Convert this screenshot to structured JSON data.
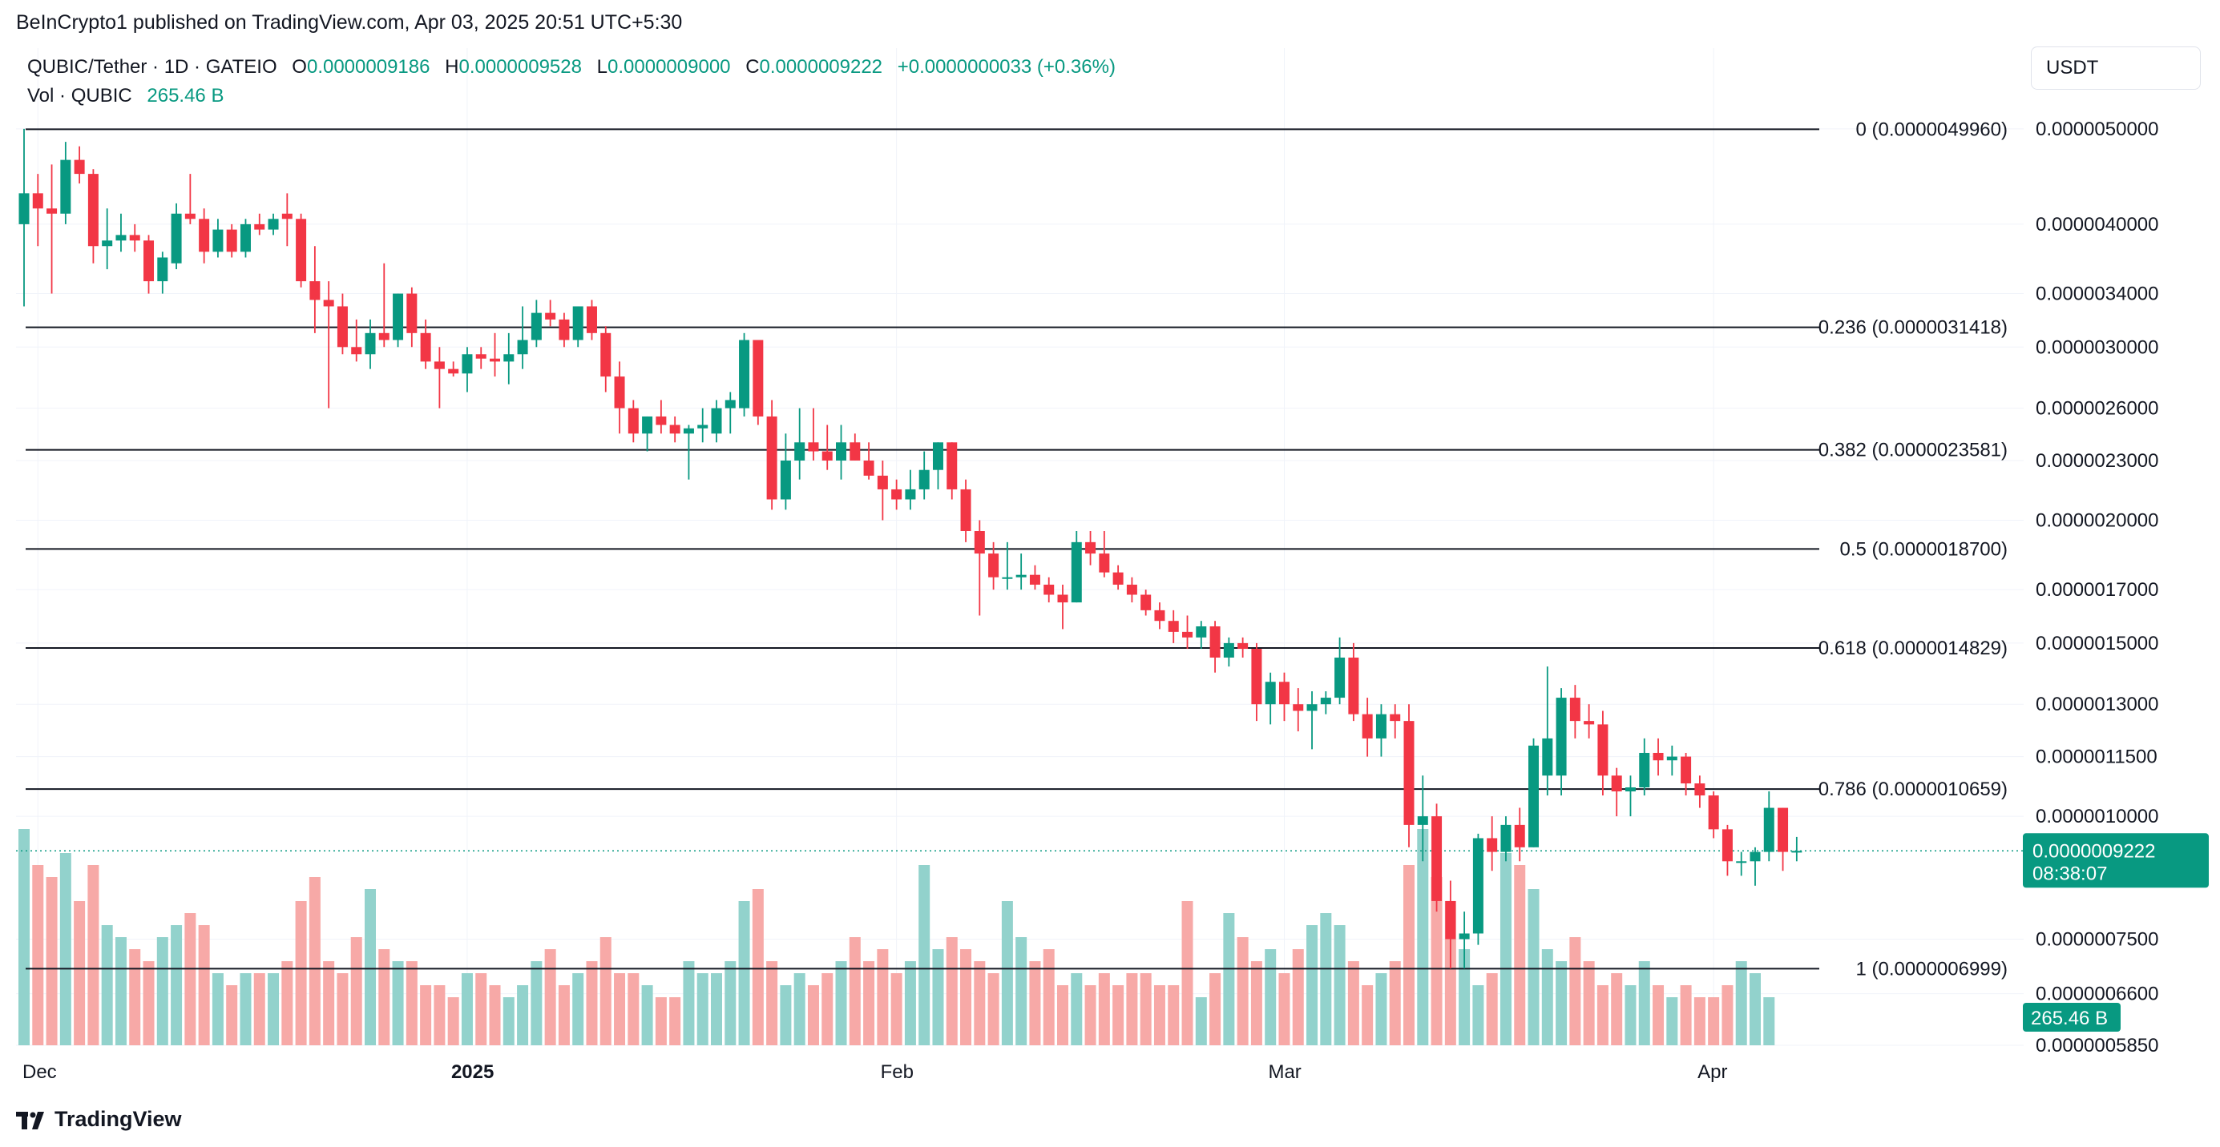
{
  "publisher": "BeInCrypto1 published on TradingView.com, Apr 03, 2025 20:51 UTC+5:30",
  "legend": {
    "symbol": "QUBIC/Tether · 1D · GATEIO",
    "o_label": "O",
    "o_value": "0.0000009186",
    "h_label": "H",
    "h_value": "0.0000009528",
    "l_label": "L",
    "l_value": "0.0000009000",
    "c_label": "C",
    "c_value": "0.0000009222",
    "change": "+0.0000000033 (+0.36%)",
    "vol_label": "Vol · QUBIC",
    "vol_value": "265.46 B"
  },
  "currency": "USDT",
  "brand": "TradingView",
  "colors": {
    "up": "#089981",
    "down": "#f23645",
    "up_vol": "#92d2cc",
    "down_vol": "#f7a9a7"
  },
  "price_badge": {
    "price": "0.0000009222",
    "countdown": "08:38:07"
  },
  "volume_badge": "265.46 B",
  "chart_data": {
    "type": "candlestick",
    "scale": "log",
    "ylim": [
      5.85e-07,
      5.2e-06
    ],
    "y_ticks": [
      {
        "v": 5e-06,
        "label": "0.0000050000"
      },
      {
        "v": 4e-06,
        "label": "0.0000040000"
      },
      {
        "v": 3.4e-06,
        "label": "0.0000034000"
      },
      {
        "v": 3e-06,
        "label": "0.0000030000"
      },
      {
        "v": 2.6e-06,
        "label": "0.0000026000"
      },
      {
        "v": 2.3e-06,
        "label": "0.0000023000"
      },
      {
        "v": 2e-06,
        "label": "0.0000020000"
      },
      {
        "v": 1.7e-06,
        "label": "0.0000017000"
      },
      {
        "v": 1.5e-06,
        "label": "0.0000015000"
      },
      {
        "v": 1.3e-06,
        "label": "0.0000013000"
      },
      {
        "v": 1.15e-06,
        "label": "0.0000011500"
      },
      {
        "v": 1e-06,
        "label": "0.0000010000"
      },
      {
        "v": 7.5e-07,
        "label": "0.0000007500"
      },
      {
        "v": 6.6e-07,
        "label": "0.0000006600"
      },
      {
        "v": 5.85e-07,
        "label": "0.0000005850"
      }
    ],
    "x_ticks": [
      {
        "i": 1,
        "label": "Dec",
        "bold": false
      },
      {
        "i": 32,
        "label": "2025",
        "bold": true
      },
      {
        "i": 63,
        "label": "Feb",
        "bold": false
      },
      {
        "i": 91,
        "label": "Mar",
        "bold": false
      },
      {
        "i": 122,
        "label": "Apr",
        "bold": false
      }
    ],
    "fib_levels": [
      {
        "v": 4.996e-06,
        "label": "0 (0.0000049960)"
      },
      {
        "v": 3.1418e-06,
        "label": "0.236 (0.0000031418)"
      },
      {
        "v": 2.3581e-06,
        "label": "0.382 (0.0000023581)"
      },
      {
        "v": 1.87e-06,
        "label": "0.5 (0.0000018700)"
      },
      {
        "v": 1.4829e-06,
        "label": "0.618 (0.0000014829)"
      },
      {
        "v": 1.0659e-06,
        "label": "0.786 (0.0000010659)"
      },
      {
        "v": 6.999e-07,
        "label": "1 (0.0000006999)"
      }
    ],
    "current_price": 9.222e-07,
    "ohlc": [
      [
        4e-06,
        5e-06,
        3.3e-06,
        4.3e-06
      ],
      [
        4.3e-06,
        4.5e-06,
        3.8e-06,
        4.15e-06
      ],
      [
        4.15e-06,
        4.6e-06,
        3.4e-06,
        4.1e-06
      ],
      [
        4.1e-06,
        4.85e-06,
        4e-06,
        4.65e-06
      ],
      [
        4.65e-06,
        4.8e-06,
        4.4e-06,
        4.5e-06
      ],
      [
        4.5e-06,
        4.55e-06,
        3.65e-06,
        3.8e-06
      ],
      [
        3.8e-06,
        4.15e-06,
        3.6e-06,
        3.85e-06
      ],
      [
        3.85e-06,
        4.1e-06,
        3.75e-06,
        3.9e-06
      ],
      [
        3.9e-06,
        4e-06,
        3.75e-06,
        3.85e-06
      ],
      [
        3.85e-06,
        3.9e-06,
        3.4e-06,
        3.5e-06
      ],
      [
        3.5e-06,
        3.75e-06,
        3.4e-06,
        3.7e-06
      ],
      [
        3.65e-06,
        4.2e-06,
        3.6e-06,
        4.1e-06
      ],
      [
        4.1e-06,
        4.5e-06,
        4e-06,
        4.05e-06
      ],
      [
        4.05e-06,
        4.15e-06,
        3.65e-06,
        3.75e-06
      ],
      [
        3.75e-06,
        4.05e-06,
        3.7e-06,
        3.95e-06
      ],
      [
        3.95e-06,
        4e-06,
        3.7e-06,
        3.75e-06
      ],
      [
        3.75e-06,
        4.05e-06,
        3.7e-06,
        4e-06
      ],
      [
        4e-06,
        4.1e-06,
        3.9e-06,
        3.95e-06
      ],
      [
        3.95e-06,
        4.1e-06,
        3.9e-06,
        4.05e-06
      ],
      [
        4.1e-06,
        4.3e-06,
        3.8e-06,
        4.05e-06
      ],
      [
        4.05e-06,
        4.1e-06,
        3.45e-06,
        3.5e-06
      ],
      [
        3.5e-06,
        3.8e-06,
        3.1e-06,
        3.35e-06
      ],
      [
        3.35e-06,
        3.5e-06,
        2.6e-06,
        3.3e-06
      ],
      [
        3.3e-06,
        3.4e-06,
        2.95e-06,
        3e-06
      ],
      [
        3e-06,
        3.2e-06,
        2.9e-06,
        2.95e-06
      ],
      [
        2.95e-06,
        3.2e-06,
        2.85e-06,
        3.1e-06
      ],
      [
        3.1e-06,
        3.65e-06,
        3e-06,
        3.05e-06
      ],
      [
        3.05e-06,
        3.4e-06,
        3e-06,
        3.4e-06
      ],
      [
        3.4e-06,
        3.45e-06,
        3e-06,
        3.1e-06
      ],
      [
        3.1e-06,
        3.2e-06,
        2.85e-06,
        2.9e-06
      ],
      [
        2.9e-06,
        3e-06,
        2.6e-06,
        2.85e-06
      ],
      [
        2.85e-06,
        2.9e-06,
        2.8e-06,
        2.82e-06
      ],
      [
        2.82e-06,
        3e-06,
        2.7e-06,
        2.95e-06
      ],
      [
        2.95e-06,
        3e-06,
        2.85e-06,
        2.92e-06
      ],
      [
        2.92e-06,
        3.1e-06,
        2.8e-06,
        2.9e-06
      ],
      [
        2.9e-06,
        3.1e-06,
        2.75e-06,
        2.95e-06
      ],
      [
        2.95e-06,
        3.3e-06,
        2.85e-06,
        3.05e-06
      ],
      [
        3.05e-06,
        3.35e-06,
        3e-06,
        3.25e-06
      ],
      [
        3.25e-06,
        3.35e-06,
        3.15e-06,
        3.2e-06
      ],
      [
        3.2e-06,
        3.25e-06,
        3e-06,
        3.05e-06
      ],
      [
        3.05e-06,
        3.3e-06,
        3e-06,
        3.3e-06
      ],
      [
        3.3e-06,
        3.35e-06,
        3.05e-06,
        3.1e-06
      ],
      [
        3.1e-06,
        3.15e-06,
        2.7e-06,
        2.8e-06
      ],
      [
        2.8e-06,
        2.9e-06,
        2.45e-06,
        2.6e-06
      ],
      [
        2.6e-06,
        2.65e-06,
        2.4e-06,
        2.45e-06
      ],
      [
        2.45e-06,
        2.55e-06,
        2.35e-06,
        2.55e-06
      ],
      [
        2.55e-06,
        2.65e-06,
        2.45e-06,
        2.5e-06
      ],
      [
        2.5e-06,
        2.55e-06,
        2.4e-06,
        2.45e-06
      ],
      [
        2.45e-06,
        2.5e-06,
        2.2e-06,
        2.48e-06
      ],
      [
        2.48e-06,
        2.6e-06,
        2.4e-06,
        2.5e-06
      ],
      [
        2.45e-06,
        2.65e-06,
        2.4e-06,
        2.6e-06
      ],
      [
        2.6e-06,
        2.7e-06,
        2.45e-06,
        2.65e-06
      ],
      [
        2.6e-06,
        3.1e-06,
        2.55e-06,
        3.05e-06
      ],
      [
        3.05e-06,
        3.05e-06,
        2.5e-06,
        2.55e-06
      ],
      [
        2.55e-06,
        2.65e-06,
        2.05e-06,
        2.1e-06
      ],
      [
        2.1e-06,
        2.45e-06,
        2.05e-06,
        2.3e-06
      ],
      [
        2.3e-06,
        2.6e-06,
        2.2e-06,
        2.4e-06
      ],
      [
        2.4e-06,
        2.6e-06,
        2.3e-06,
        2.35e-06
      ],
      [
        2.35e-06,
        2.5e-06,
        2.25e-06,
        2.3e-06
      ],
      [
        2.3e-06,
        2.5e-06,
        2.2e-06,
        2.4e-06
      ],
      [
        2.4e-06,
        2.45e-06,
        2.3e-06,
        2.3e-06
      ],
      [
        2.3e-06,
        2.4e-06,
        2.2e-06,
        2.22e-06
      ],
      [
        2.22e-06,
        2.3e-06,
        2e-06,
        2.15e-06
      ],
      [
        2.15e-06,
        2.2e-06,
        2.05e-06,
        2.1e-06
      ],
      [
        2.1e-06,
        2.25e-06,
        2.05e-06,
        2.15e-06
      ],
      [
        2.15e-06,
        2.35e-06,
        2.1e-06,
        2.25e-06
      ],
      [
        2.25e-06,
        2.4e-06,
        2.15e-06,
        2.4e-06
      ],
      [
        2.4e-06,
        2.4e-06,
        2.1e-06,
        2.15e-06
      ],
      [
        2.15e-06,
        2.2e-06,
        1.9e-06,
        1.95e-06
      ],
      [
        1.95e-06,
        2e-06,
        1.6e-06,
        1.85e-06
      ],
      [
        1.85e-06,
        1.9e-06,
        1.7e-06,
        1.75e-06
      ],
      [
        1.75e-06,
        1.9e-06,
        1.7e-06,
        1.75e-06
      ],
      [
        1.75e-06,
        1.85e-06,
        1.7e-06,
        1.76e-06
      ],
      [
        1.76e-06,
        1.8e-06,
        1.7e-06,
        1.72e-06
      ],
      [
        1.72e-06,
        1.75e-06,
        1.65e-06,
        1.68e-06
      ],
      [
        1.68e-06,
        1.72e-06,
        1.55e-06,
        1.65e-06
      ],
      [
        1.65e-06,
        1.95e-06,
        1.65e-06,
        1.9e-06
      ],
      [
        1.9e-06,
        1.95e-06,
        1.8e-06,
        1.85e-06
      ],
      [
        1.85e-06,
        1.95e-06,
        1.75e-06,
        1.77e-06
      ],
      [
        1.77e-06,
        1.8e-06,
        1.7e-06,
        1.72e-06
      ],
      [
        1.72e-06,
        1.75e-06,
        1.65e-06,
        1.68e-06
      ],
      [
        1.68e-06,
        1.7e-06,
        1.6e-06,
        1.62e-06
      ],
      [
        1.62e-06,
        1.65e-06,
        1.55e-06,
        1.58e-06
      ],
      [
        1.58e-06,
        1.62e-06,
        1.5e-06,
        1.54e-06
      ],
      [
        1.54e-06,
        1.6e-06,
        1.48e-06,
        1.52e-06
      ],
      [
        1.52e-06,
        1.58e-06,
        1.48e-06,
        1.56e-06
      ],
      [
        1.56e-06,
        1.58e-06,
        1.4e-06,
        1.45e-06
      ],
      [
        1.45e-06,
        1.52e-06,
        1.42e-06,
        1.5e-06
      ],
      [
        1.5e-06,
        1.52e-06,
        1.45e-06,
        1.48e-06
      ],
      [
        1.48e-06,
        1.5e-06,
        1.25e-06,
        1.3e-06
      ],
      [
        1.3e-06,
        1.4e-06,
        1.24e-06,
        1.37e-06
      ],
      [
        1.37e-06,
        1.4e-06,
        1.25e-06,
        1.3e-06
      ],
      [
        1.3e-06,
        1.35e-06,
        1.22e-06,
        1.28e-06
      ],
      [
        1.28e-06,
        1.34e-06,
        1.17e-06,
        1.3e-06
      ],
      [
        1.3e-06,
        1.34e-06,
        1.27e-06,
        1.32e-06
      ],
      [
        1.32e-06,
        1.52e-06,
        1.3e-06,
        1.45e-06
      ],
      [
        1.45e-06,
        1.5e-06,
        1.25e-06,
        1.27e-06
      ],
      [
        1.27e-06,
        1.32e-06,
        1.15e-06,
        1.2e-06
      ],
      [
        1.2e-06,
        1.3e-06,
        1.15e-06,
        1.27e-06
      ],
      [
        1.27e-06,
        1.3e-06,
        1.2e-06,
        1.25e-06
      ],
      [
        1.25e-06,
        1.3e-06,
        9.3e-07,
        9.8e-07
      ],
      [
        9.8e-07,
        1.1e-06,
        9e-07,
        1e-06
      ],
      [
        1e-06,
        1.03e-06,
        8e-07,
        8.2e-07
      ],
      [
        8.2e-07,
        8.6e-07,
        7e-07,
        7.5e-07
      ],
      [
        7.5e-07,
        8e-07,
        7e-07,
        7.6e-07
      ],
      [
        7.6e-07,
        9.6e-07,
        7.4e-07,
        9.5e-07
      ],
      [
        9.5e-07,
        1e-06,
        8.8e-07,
        9.2e-07
      ],
      [
        9.2e-07,
        1e-06,
        9e-07,
        9.8e-07
      ],
      [
        9.8e-07,
        1.02e-06,
        9e-07,
        9.3e-07
      ],
      [
        9.3e-07,
        1.2e-06,
        9.3e-07,
        1.18e-06
      ],
      [
        1.1e-06,
        1.42e-06,
        1.05e-06,
        1.2e-06
      ],
      [
        1.1e-06,
        1.35e-06,
        1.05e-06,
        1.32e-06
      ],
      [
        1.32e-06,
        1.36e-06,
        1.2e-06,
        1.25e-06
      ],
      [
        1.25e-06,
        1.3e-06,
        1.2e-06,
        1.24e-06
      ],
      [
        1.24e-06,
        1.28e-06,
        1.05e-06,
        1.1e-06
      ],
      [
        1.1e-06,
        1.12e-06,
        1e-06,
        1.06e-06
      ],
      [
        1.06e-06,
        1.1e-06,
        1e-06,
        1.07e-06
      ],
      [
        1.07e-06,
        1.2e-06,
        1.05e-06,
        1.16e-06
      ],
      [
        1.16e-06,
        1.2e-06,
        1.1e-06,
        1.14e-06
      ],
      [
        1.14e-06,
        1.18e-06,
        1.1e-06,
        1.15e-06
      ],
      [
        1.15e-06,
        1.16e-06,
        1.05e-06,
        1.08e-06
      ],
      [
        1.08e-06,
        1.1e-06,
        1.02e-06,
        1.05e-06
      ],
      [
        1.05e-06,
        1.06e-06,
        9.5e-07,
        9.7e-07
      ],
      [
        9.7e-07,
        9.8e-07,
        8.7e-07,
        9e-07
      ],
      [
        9e-07,
        9.2e-07,
        8.7e-07,
        9e-07
      ],
      [
        9e-07,
        9.3e-07,
        8.5e-07,
        9.2e-07
      ],
      [
        9.2e-07,
        1.06e-06,
        9e-07,
        1.02e-06
      ],
      [
        1.02e-06,
        1.02e-06,
        8.8e-07,
        9.2e-07
      ],
      [
        9.186e-07,
        9.528e-07,
        9e-07,
        9.222e-07
      ]
    ],
    "volume": [
      0.9,
      0.75,
      0.7,
      0.8,
      0.6,
      0.75,
      0.5,
      0.45,
      0.4,
      0.35,
      0.45,
      0.5,
      0.55,
      0.5,
      0.3,
      0.25,
      0.3,
      0.3,
      0.3,
      0.35,
      0.6,
      0.7,
      0.35,
      0.3,
      0.45,
      0.65,
      0.4,
      0.35,
      0.35,
      0.25,
      0.25,
      0.2,
      0.3,
      0.3,
      0.25,
      0.2,
      0.25,
      0.35,
      0.4,
      0.25,
      0.3,
      0.35,
      0.45,
      0.3,
      0.3,
      0.25,
      0.2,
      0.2,
      0.35,
      0.3,
      0.3,
      0.35,
      0.6,
      0.65,
      0.35,
      0.25,
      0.3,
      0.25,
      0.3,
      0.35,
      0.45,
      0.35,
      0.4,
      0.3,
      0.35,
      0.75,
      0.4,
      0.45,
      0.4,
      0.35,
      0.3,
      0.6,
      0.45,
      0.35,
      0.4,
      0.25,
      0.3,
      0.25,
      0.3,
      0.25,
      0.3,
      0.3,
      0.25,
      0.25,
      0.6,
      0.2,
      0.3,
      0.55,
      0.45,
      0.35,
      0.4,
      0.3,
      0.4,
      0.5,
      0.55,
      0.5,
      0.35,
      0.25,
      0.3,
      0.35,
      0.75,
      0.9,
      0.7,
      0.6,
      0.4,
      0.25,
      0.3,
      0.8,
      0.75,
      0.65,
      0.4,
      0.35,
      0.45,
      0.35,
      0.25,
      0.3,
      0.25,
      0.35,
      0.25,
      0.2,
      0.25,
      0.2,
      0.2,
      0.25,
      0.35,
      0.3,
      0.2
    ],
    "volume_max": 1.0
  }
}
